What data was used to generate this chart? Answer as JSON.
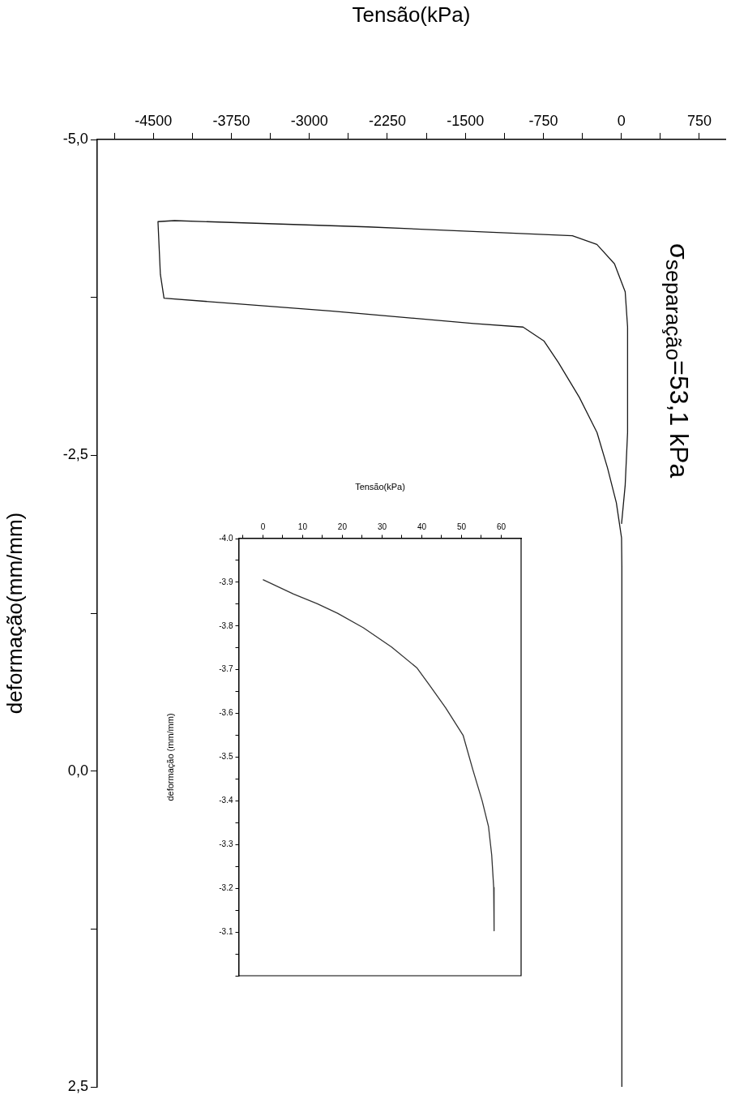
{
  "chart_data": [
    {
      "type": "line",
      "ylabel": "deformação(mm/mm)",
      "xlabel": "Tensão(kPa)",
      "annotations": [
        "σ$_{separação}$=53,1 kPa"
      ],
      "x": [
        5,
        5,
        2,
        -48,
        -133,
        -234,
        -404,
        -607,
        -743,
        -945,
        -1420,
        -2774,
        -4398,
        -4433,
        -4456,
        -4297,
        -2435,
        -471,
        -235,
        -66,
        37,
        60,
        60,
        37,
        2
      ],
      "series": [
        {
          "color": "#1a1a1a",
          "values": [
            2.5,
            -1.62,
            -1.846,
            -2.124,
            -2.4,
            -2.68,
            -2.959,
            -3.237,
            -3.404,
            -3.515,
            -3.543,
            -3.641,
            -3.744,
            -3.933,
            -4.35,
            -4.358,
            -4.308,
            -4.238,
            -4.169,
            -4.016,
            -3.794,
            -3.515,
            -2.68,
            -2.264,
            -1.957
          ]
        }
      ],
      "ylim": [
        2.5,
        -5
      ],
      "xlim": [
        -5040,
        1000
      ],
      "yticks": [
        {
          "value": -5,
          "label": "-5,0"
        },
        {
          "value": -3.75,
          "label": null
        },
        {
          "value": -2.5,
          "label": "-2,5"
        },
        {
          "value": -1.25,
          "label": null
        },
        {
          "value": 0,
          "label": "0,0"
        },
        {
          "value": 1.25,
          "label": null
        },
        {
          "value": 2.5,
          "label": "2,5"
        }
      ],
      "xticks": [
        {
          "value": -4875,
          "label": null
        },
        -4500,
        {
          "value": -4125,
          "label": null
        },
        -3750,
        {
          "value": -3375,
          "label": null
        },
        -3000,
        {
          "value": -2625,
          "label": null
        },
        -2250,
        {
          "value": -1875,
          "label": null
        },
        -1500,
        {
          "value": -1125,
          "label": null
        },
        -750,
        {
          "value": -375,
          "label": null
        },
        0,
        {
          "value": 375,
          "label": null
        },
        750
      ]
    },
    {
      "type": "line",
      "ylabel": "deformação (mm/mm)",
      "xlabel": "Tensão(kPa)",
      "x": [
        0,
        7.7,
        13.7,
        18.8,
        25.3,
        32.4,
        38.8,
        42,
        46,
        50.4,
        52.8,
        55.2,
        56.8,
        57.6,
        58.1,
        58.2
      ],
      "series": [
        {
          "color": "#333333",
          "values": [
            -3.906,
            -3.873,
            -3.851,
            -3.829,
            -3.796,
            -3.752,
            -3.704,
            -3.664,
            -3.613,
            -3.55,
            -3.473,
            -3.4,
            -3.341,
            -3.276,
            -3.202,
            -3.103
          ]
        }
      ],
      "ylim": [
        -3,
        -4
      ],
      "xlim": [
        -6,
        65
      ],
      "yticks": [
        {
          "value": -4,
          "label": "-4.0"
        },
        {
          "value": -3.95,
          "label": null
        },
        -3.9,
        {
          "value": -3.85,
          "label": null
        },
        -3.8,
        {
          "value": -3.75,
          "label": null
        },
        -3.7,
        {
          "value": -3.65,
          "label": null
        },
        -3.6,
        {
          "value": -3.55,
          "label": null
        },
        -3.5,
        {
          "value": -3.45,
          "label": null
        },
        -3.4,
        {
          "value": -3.35,
          "label": null
        },
        -3.3,
        {
          "value": -3.25,
          "label": null
        },
        -3.2,
        {
          "value": -3.15,
          "label": null
        },
        -3.1,
        {
          "value": -3.05,
          "label": null
        },
        {
          "value": -3,
          "label": null
        }
      ],
      "xticks": [
        {
          "value": -5,
          "label": null
        },
        0,
        {
          "value": 5,
          "label": null
        },
        10,
        {
          "value": 15,
          "label": null
        },
        20,
        {
          "value": 25,
          "label": null
        },
        30,
        {
          "value": 35,
          "label": null
        },
        40,
        {
          "value": 45,
          "label": null
        },
        50,
        {
          "value": 55,
          "label": null
        },
        60
      ]
    }
  ]
}
